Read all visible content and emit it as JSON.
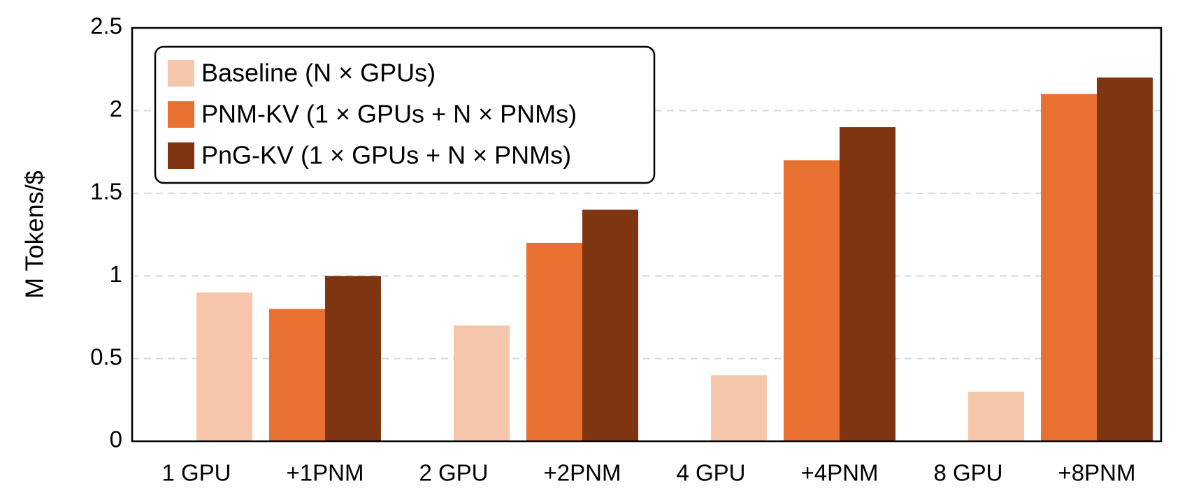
{
  "chart_data": {
    "type": "bar",
    "y_label": "M Tokens/$",
    "categories": [
      "1 GPU",
      "+1PNM",
      "2 GPU",
      "+2PNM",
      "4 GPU",
      "+4PNM",
      "8 GPU",
      "+8PNM"
    ],
    "series": [
      {
        "name": "Baseline (N × GPUs)",
        "color": "#f5c6ab",
        "values": [
          0.9,
          null,
          0.7,
          null,
          0.4,
          null,
          0.3,
          null
        ]
      },
      {
        "name": "PNM-KV (1 × GPUs + N × PNMs)",
        "color": "#e87132",
        "values": [
          null,
          0.8,
          null,
          1.2,
          null,
          1.7,
          null,
          2.1
        ]
      },
      {
        "name": "PnG-KV (1 × GPUs + N × PNMs)",
        "color": "#7f3512",
        "values": [
          null,
          1.0,
          null,
          1.4,
          null,
          1.9,
          null,
          2.2
        ]
      }
    ],
    "ylim": [
      0,
      2.5
    ],
    "yticks": [
      0,
      0.5,
      1,
      1.5,
      2,
      2.5
    ],
    "grid": true,
    "legend": "upper left"
  }
}
